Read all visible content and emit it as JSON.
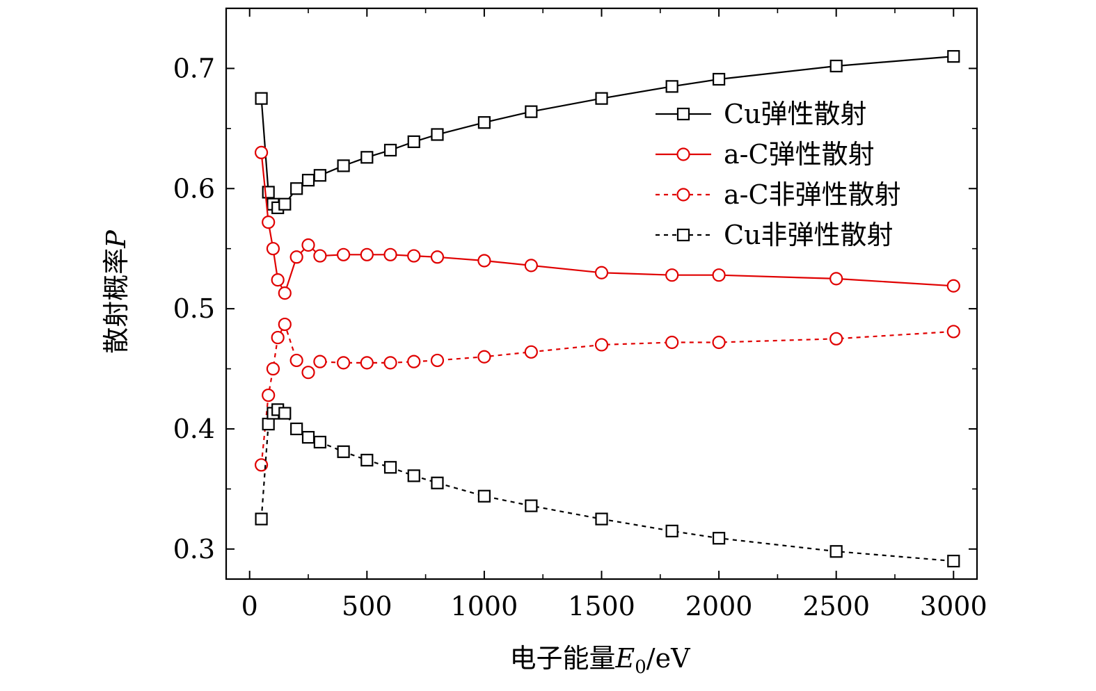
{
  "chart_data": {
    "type": "line",
    "title": "",
    "xlabel": "电子能量E0/eV",
    "xlabel_parts": {
      "main": "电子能量",
      "var": "E",
      "sub": "0",
      "unit": "/eV"
    },
    "ylabel": "散射概率P",
    "ylabel_parts": {
      "main": "散射概率",
      "var": "P"
    },
    "xlim": [
      -100,
      3100
    ],
    "ylim": [
      0.275,
      0.75
    ],
    "xticks": [
      0,
      500,
      1000,
      1500,
      2000,
      2500,
      3000
    ],
    "xtick_labels": [
      "0",
      "500",
      "1000",
      "1500",
      "2000",
      "2500",
      "3000"
    ],
    "yticks": [
      0.3,
      0.4,
      0.5,
      0.6,
      0.7
    ],
    "ytick_labels": [
      "0.3",
      "0.4",
      "0.5",
      "0.6",
      "0.7"
    ],
    "legend_position": "top-right",
    "x": [
      50,
      80,
      100,
      120,
      150,
      200,
      250,
      300,
      400,
      500,
      600,
      700,
      800,
      1000,
      1200,
      1500,
      1800,
      2000,
      2500,
      3000
    ],
    "series": [
      {
        "name": "Cu弹性散射",
        "color": "#000000",
        "marker": "square",
        "dash": "solid",
        "values": [
          0.675,
          0.597,
          0.587,
          0.584,
          0.587,
          0.6,
          0.607,
          0.611,
          0.619,
          0.626,
          0.632,
          0.639,
          0.645,
          0.655,
          0.664,
          0.675,
          0.685,
          0.691,
          0.702,
          0.71
        ]
      },
      {
        "name": "a-C弹性散射",
        "color": "#e00000",
        "marker": "circle",
        "dash": "solid",
        "values": [
          0.63,
          0.572,
          0.55,
          0.524,
          0.513,
          0.543,
          0.553,
          0.544,
          0.545,
          0.545,
          0.545,
          0.544,
          0.543,
          0.54,
          0.536,
          0.53,
          0.528,
          0.528,
          0.525,
          0.519
        ]
      },
      {
        "name": "a-C非弹性散射",
        "color": "#e00000",
        "marker": "circle",
        "dash": "dashed",
        "values": [
          0.37,
          0.428,
          0.45,
          0.476,
          0.487,
          0.457,
          0.447,
          0.456,
          0.455,
          0.455,
          0.455,
          0.456,
          0.457,
          0.46,
          0.464,
          0.47,
          0.472,
          0.472,
          0.475,
          0.481
        ]
      },
      {
        "name": "Cu非弹性散射",
        "color": "#000000",
        "marker": "square",
        "dash": "dashed",
        "values": [
          0.325,
          0.404,
          0.413,
          0.416,
          0.413,
          0.4,
          0.393,
          0.389,
          0.381,
          0.374,
          0.368,
          0.361,
          0.355,
          0.344,
          0.336,
          0.325,
          0.315,
          0.309,
          0.298,
          0.29
        ]
      }
    ]
  }
}
